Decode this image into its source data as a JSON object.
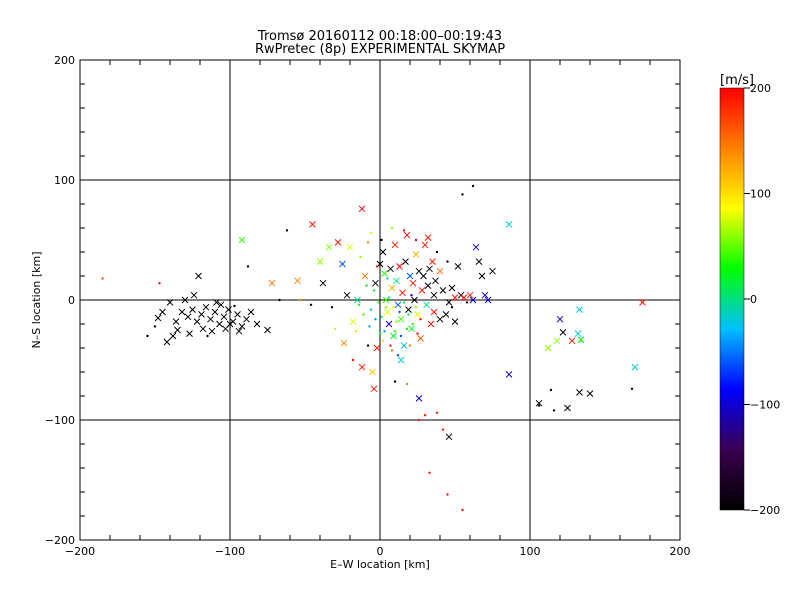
{
  "title": "Tromsø 20160112 00:18:00–00:19:43",
  "subtitle": "RwPretec (8p) EXPERIMENTAL SKYMAP",
  "colorbar": {
    "unit": "[m/s]",
    "ticks": [
      200,
      100,
      0,
      -100,
      -200
    ],
    "range": [
      -200,
      200
    ],
    "stops": [
      "#000000",
      "#3a0050",
      "#0000ff",
      "#00bfff",
      "#00ff00",
      "#ffff00",
      "#ff8000",
      "#ff0000"
    ]
  },
  "chart_data": {
    "type": "scatter",
    "title": "Tromsø 20160112 00:18:00–00:19:43",
    "subtitle": "RwPretec (8p) EXPERIMENTAL SKYMAP",
    "xlabel": "E–W location [km]",
    "ylabel": "N–S location [km]",
    "xlim": [
      -200,
      200
    ],
    "ylim": [
      -200,
      200
    ],
    "x_ticks": [
      -200,
      -100,
      0,
      100,
      200
    ],
    "y_ticks": [
      -200,
      -100,
      0,
      100,
      200
    ],
    "grid": true,
    "color_quantity": "velocity [m/s]",
    "color_range": [
      -200,
      200
    ],
    "markers": [
      "x",
      "dot"
    ],
    "points": [
      [
        -132,
        -10,
        -200,
        "x"
      ],
      [
        -128,
        -14,
        -200,
        "x"
      ],
      [
        -125,
        -8,
        -200,
        "x"
      ],
      [
        -122,
        -18,
        -200,
        "x"
      ],
      [
        -119,
        -12,
        -200,
        "x"
      ],
      [
        -116,
        -6,
        -200,
        "x"
      ],
      [
        -113,
        -16,
        -200,
        "x"
      ],
      [
        -110,
        -10,
        -200,
        "x"
      ],
      [
        -107,
        -20,
        -200,
        "x"
      ],
      [
        -104,
        -14,
        -200,
        "x"
      ],
      [
        -101,
        -8,
        -200,
        "x"
      ],
      [
        -98,
        -18,
        -200,
        "x"
      ],
      [
        -95,
        -12,
        -200,
        "x"
      ],
      [
        -92,
        -22,
        -200,
        "x"
      ],
      [
        -89,
        -16,
        -200,
        "x"
      ],
      [
        -135,
        -25,
        -200,
        "x"
      ],
      [
        -138,
        -30,
        -200,
        "x"
      ],
      [
        -140,
        -2,
        -200,
        "x"
      ],
      [
        -127,
        -28,
        -200,
        "x"
      ],
      [
        -121,
        20,
        -200,
        "x"
      ],
      [
        -118,
        -24,
        -200,
        "x"
      ],
      [
        -112,
        -26,
        -200,
        "x"
      ],
      [
        -106,
        -4,
        -200,
        "x"
      ],
      [
        -100,
        -20,
        -200,
        "x"
      ],
      [
        -94,
        -26,
        -200,
        "x"
      ],
      [
        -86,
        -10,
        -200,
        "x"
      ],
      [
        -130,
        0,
        -200,
        "x"
      ],
      [
        -124,
        4,
        -200,
        "x"
      ],
      [
        -145,
        -10,
        -200,
        "x"
      ],
      [
        -148,
        -15,
        -200,
        "x"
      ],
      [
        -142,
        -35,
        -200,
        "x"
      ],
      [
        -136,
        -18,
        -200,
        "x"
      ],
      [
        -109,
        -2,
        -200,
        "x"
      ],
      [
        -103,
        -24,
        -200,
        "x"
      ],
      [
        -82,
        -20,
        -200,
        "x"
      ],
      [
        -75,
        -25,
        -200,
        "x"
      ],
      [
        -150,
        -22,
        -200,
        "dot"
      ],
      [
        -155,
        -30,
        -200,
        "dot"
      ],
      [
        -97,
        -5,
        -200,
        "dot"
      ],
      [
        -115,
        -30,
        -200,
        "dot"
      ],
      [
        -185,
        18,
        170,
        "dot"
      ],
      [
        -147,
        14,
        190,
        "dot"
      ],
      [
        -92,
        50,
        40,
        "x"
      ],
      [
        -88,
        28,
        -200,
        "dot"
      ],
      [
        -72,
        14,
        150,
        "x"
      ],
      [
        -62,
        58,
        -200,
        "dot"
      ],
      [
        -67,
        0,
        -200,
        "dot"
      ],
      [
        -45,
        63,
        190,
        "x"
      ],
      [
        -40,
        32,
        60,
        "x"
      ],
      [
        -38,
        14,
        -200,
        "x"
      ],
      [
        -55,
        16,
        140,
        "x"
      ],
      [
        -53,
        0,
        140,
        "dot"
      ],
      [
        -46,
        -4,
        -200,
        "dot"
      ],
      [
        -34,
        44,
        60,
        "x"
      ],
      [
        -32,
        -6,
        -200,
        "dot"
      ],
      [
        -28,
        48,
        190,
        "x"
      ],
      [
        -25,
        30,
        -60,
        "x"
      ],
      [
        -22,
        4,
        -200,
        "x"
      ],
      [
        -20,
        44,
        80,
        "x"
      ],
      [
        -18,
        -18,
        80,
        "x"
      ],
      [
        -15,
        0,
        0,
        "x"
      ],
      [
        -12,
        76,
        200,
        "x"
      ],
      [
        -10,
        20,
        140,
        "x"
      ],
      [
        -8,
        -38,
        -200,
        "dot"
      ],
      [
        -6,
        56,
        70,
        "dot"
      ],
      [
        -5,
        -60,
        110,
        "x"
      ],
      [
        -3,
        14,
        -200,
        "x"
      ],
      [
        -2,
        -40,
        190,
        "x"
      ],
      [
        0,
        30,
        -200,
        "x"
      ],
      [
        2,
        40,
        -200,
        "x"
      ],
      [
        3,
        22,
        40,
        "x"
      ],
      [
        4,
        0,
        40,
        "x"
      ],
      [
        5,
        -10,
        80,
        "x"
      ],
      [
        6,
        -20,
        -100,
        "x"
      ],
      [
        7,
        26,
        -200,
        "x"
      ],
      [
        8,
        10,
        120,
        "x"
      ],
      [
        9,
        -30,
        20,
        "x"
      ],
      [
        10,
        46,
        190,
        "x"
      ],
      [
        11,
        16,
        0,
        "x"
      ],
      [
        12,
        -4,
        -60,
        "x"
      ],
      [
        13,
        28,
        200,
        "x"
      ],
      [
        14,
        -16,
        40,
        "x"
      ],
      [
        15,
        6,
        190,
        "x"
      ],
      [
        16,
        -38,
        -20,
        "x"
      ],
      [
        17,
        32,
        -200,
        "x"
      ],
      [
        18,
        54,
        200,
        "x"
      ],
      [
        19,
        -8,
        -200,
        "x"
      ],
      [
        20,
        20,
        -60,
        "x"
      ],
      [
        21,
        -24,
        20,
        "x"
      ],
      [
        22,
        14,
        190,
        "x"
      ],
      [
        23,
        0,
        -200,
        "x"
      ],
      [
        24,
        38,
        120,
        "x"
      ],
      [
        25,
        -12,
        80,
        "x"
      ],
      [
        26,
        24,
        -200,
        "x"
      ],
      [
        27,
        -32,
        160,
        "x"
      ],
      [
        28,
        8,
        190,
        "x"
      ],
      [
        29,
        20,
        -200,
        "x"
      ],
      [
        30,
        46,
        190,
        "x"
      ],
      [
        31,
        -4,
        0,
        "x"
      ],
      [
        32,
        12,
        -200,
        "x"
      ],
      [
        33,
        26,
        -200,
        "x"
      ],
      [
        34,
        -20,
        190,
        "x"
      ],
      [
        35,
        32,
        190,
        "x"
      ],
      [
        36,
        4,
        -200,
        "x"
      ],
      [
        37,
        16,
        -200,
        "x"
      ],
      [
        -1,
        -2,
        40,
        "dot"
      ],
      [
        1,
        -14,
        0,
        "dot"
      ],
      [
        3,
        -26,
        -40,
        "dot"
      ],
      [
        -4,
        8,
        20,
        "dot"
      ],
      [
        6,
        2,
        0,
        "dot"
      ],
      [
        9,
        -6,
        80,
        "dot"
      ],
      [
        -7,
        -22,
        -40,
        "dot"
      ],
      [
        11,
        -18,
        60,
        "dot"
      ],
      [
        -9,
        12,
        20,
        "dot"
      ],
      [
        14,
        -30,
        -60,
        "dot"
      ],
      [
        -11,
        -12,
        40,
        "dot"
      ],
      [
        2,
        -34,
        100,
        "dot"
      ],
      [
        5,
        18,
        -20,
        "dot"
      ],
      [
        -2,
        28,
        190,
        "dot"
      ],
      [
        8,
        -42,
        150,
        "dot"
      ],
      [
        12,
        -46,
        -60,
        "dot"
      ],
      [
        16,
        -2,
        20,
        "dot"
      ],
      [
        19,
        -12,
        0,
        "dot"
      ],
      [
        22,
        -20,
        40,
        "dot"
      ],
      [
        -6,
        -8,
        0,
        "dot"
      ],
      [
        -3,
        -16,
        -40,
        "dot"
      ],
      [
        0,
        -28,
        20,
        "dot"
      ],
      [
        4,
        -6,
        60,
        "dot"
      ],
      [
        7,
        -38,
        190,
        "dot"
      ],
      [
        10,
        -26,
        40,
        "dot"
      ],
      [
        13,
        -10,
        -60,
        "dot"
      ],
      [
        18,
        -24,
        20,
        "dot"
      ],
      [
        21,
        4,
        -100,
        "dot"
      ],
      [
        24,
        -6,
        60,
        "dot"
      ],
      [
        27,
        -16,
        190,
        "dot"
      ],
      [
        -14,
        -4,
        20,
        "dot"
      ],
      [
        -16,
        -26,
        100,
        "dot"
      ],
      [
        -13,
        36,
        60,
        "dot"
      ],
      [
        20,
        -38,
        140,
        "dot"
      ],
      [
        25,
        -28,
        190,
        "dot"
      ],
      [
        -8,
        48,
        140,
        "dot"
      ],
      [
        1,
        50,
        -200,
        "dot"
      ],
      [
        8,
        60,
        60,
        "dot"
      ],
      [
        16,
        58,
        190,
        "dot"
      ],
      [
        24,
        50,
        200,
        "dot"
      ],
      [
        32,
        52,
        190,
        "x"
      ],
      [
        38,
        40,
        -200,
        "dot"
      ],
      [
        40,
        24,
        150,
        "x"
      ],
      [
        42,
        8,
        -200,
        "x"
      ],
      [
        44,
        -12,
        -200,
        "x"
      ],
      [
        46,
        -2,
        -200,
        "x"
      ],
      [
        48,
        10,
        -200,
        "x"
      ],
      [
        50,
        -18,
        -200,
        "x"
      ],
      [
        52,
        28,
        -200,
        "x"
      ],
      [
        54,
        4,
        -200,
        "x"
      ],
      [
        36,
        -10,
        190,
        "x"
      ],
      [
        40,
        -16,
        -200,
        "x"
      ],
      [
        45,
        32,
        -200,
        "dot"
      ],
      [
        48,
        -6,
        -200,
        "dot"
      ],
      [
        50,
        2,
        190,
        "x"
      ],
      [
        56,
        2,
        190,
        "x"
      ],
      [
        58,
        -2,
        -200,
        "dot"
      ],
      [
        60,
        4,
        190,
        "x"
      ],
      [
        62,
        0,
        -100,
        "x"
      ],
      [
        64,
        44,
        -100,
        "x"
      ],
      [
        66,
        32,
        -200,
        "x"
      ],
      [
        68,
        20,
        -200,
        "x"
      ],
      [
        70,
        4,
        -100,
        "x"
      ],
      [
        72,
        0,
        -100,
        "x"
      ],
      [
        75,
        24,
        -200,
        "x"
      ],
      [
        55,
        88,
        -200,
        "dot"
      ],
      [
        62,
        95,
        -200,
        "dot"
      ],
      [
        86,
        63,
        -20,
        "x"
      ],
      [
        86,
        -62,
        -100,
        "x"
      ],
      [
        112,
        -40,
        60,
        "x"
      ],
      [
        118,
        -34,
        60,
        "x"
      ],
      [
        120,
        -16,
        -100,
        "x"
      ],
      [
        122,
        -27,
        -200,
        "x"
      ],
      [
        128,
        -34,
        190,
        "x"
      ],
      [
        132,
        -28,
        -20,
        "x"
      ],
      [
        134,
        -33,
        20,
        "x"
      ],
      [
        133,
        -8,
        -20,
        "x"
      ],
      [
        134,
        -34,
        40,
        "dot"
      ],
      [
        106,
        -88,
        -200,
        "dot"
      ],
      [
        106,
        -86,
        -200,
        "x"
      ],
      [
        114,
        -75,
        -200,
        "dot"
      ],
      [
        116,
        -92,
        -200,
        "dot"
      ],
      [
        125,
        -90,
        -200,
        "x"
      ],
      [
        133,
        -77,
        -200,
        "x"
      ],
      [
        140,
        -78,
        -200,
        "x"
      ],
      [
        170,
        -56,
        -20,
        "x"
      ],
      [
        175,
        -2,
        190,
        "x"
      ],
      [
        168,
        -74,
        -200,
        "dot"
      ],
      [
        46,
        -114,
        -200,
        "x"
      ],
      [
        30,
        -96,
        190,
        "dot"
      ],
      [
        38,
        -94,
        190,
        "dot"
      ],
      [
        26,
        -100,
        190,
        "dot"
      ],
      [
        42,
        -108,
        190,
        "dot"
      ],
      [
        33,
        -144,
        190,
        "dot"
      ],
      [
        45,
        -162,
        190,
        "dot"
      ],
      [
        55,
        -175,
        190,
        "dot"
      ],
      [
        18,
        -70,
        140,
        "dot"
      ],
      [
        10,
        -68,
        -200,
        "dot"
      ],
      [
        -12,
        -56,
        190,
        "x"
      ],
      [
        -4,
        -74,
        190,
        "x"
      ],
      [
        26,
        -82,
        -100,
        "x"
      ],
      [
        14,
        -50,
        -20,
        "x"
      ],
      [
        -18,
        -50,
        190,
        "dot"
      ],
      [
        -24,
        -36,
        140,
        "x"
      ],
      [
        -30,
        -24,
        100,
        "dot"
      ]
    ]
  }
}
